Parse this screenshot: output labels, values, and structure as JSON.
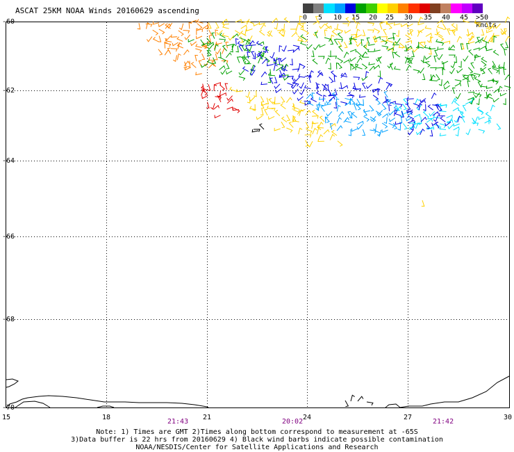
{
  "title": "ASCAT 25KM NOAA Winds 20160629 ascending",
  "legend": {
    "colors": [
      "#404040",
      "#808080",
      "#00e0ff",
      "#00a0ff",
      "#0000e0",
      "#00a000",
      "#40d000",
      "#ffff00",
      "#ffd000",
      "#ff8000",
      "#ff3000",
      "#e00000",
      "#804020",
      "#c08060",
      "#ff00ff",
      "#c000ff",
      "#6000c0"
    ],
    "labels": [
      "0",
      "5",
      "10",
      "15",
      "20",
      "25",
      "30",
      "35",
      "40",
      "45",
      ">50 knots"
    ]
  },
  "lat_labels": [
    "-60",
    "-62",
    "-64",
    "-66",
    "-68",
    "-70"
  ],
  "lon_labels": [
    "15",
    "18",
    "21",
    "24",
    "27",
    "30"
  ],
  "time_labels": [
    "21:43",
    "20:02",
    "21:42"
  ],
  "notes": [
    "Note: 1) Times are GMT 2)Times along bottom correspond to measurement at -65S",
    "3)Data buffer is 22 hrs from 20160629 4) Black wind barbs indicate possible contamination",
    "NOAA/NESDIS/Center for Satellite Applications and Research"
  ]
}
